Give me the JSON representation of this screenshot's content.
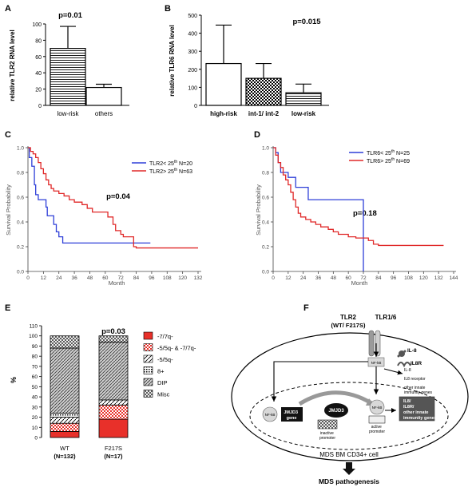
{
  "panels": {
    "A": {
      "letter": "A",
      "pvalue": "p=0.01",
      "ylabel": "relative TLR2 RNA level",
      "yticks": [
        "0",
        "20",
        "40",
        "60",
        "80",
        "100"
      ],
      "categories": [
        "low-risk",
        "others"
      ]
    },
    "B": {
      "letter": "B",
      "pvalue": "p=0.015",
      "ylabel": "relative TLR6 RNA level",
      "yticks": [
        "0",
        "100",
        "200",
        "300",
        "400",
        "500"
      ],
      "categories": [
        "high-risk",
        "int-1/ int-2",
        "low-risk"
      ]
    },
    "C": {
      "letter": "C",
      "pvalue": "p=0.04",
      "ylabel": "Survival Probability",
      "xlabel": "Month",
      "yticks": [
        "0.0",
        "0.2",
        "0.4",
        "0.6",
        "0.8",
        "1.0"
      ],
      "xticks": [
        "0",
        "12",
        "24",
        "36",
        "48",
        "60",
        "72",
        "84",
        "96",
        "108",
        "120",
        "132"
      ],
      "legend": [
        {
          "base": "TLR2< 25",
          "sup": "th",
          "n": " N=20"
        },
        {
          "base": "TLR2> 25",
          "sup": "th",
          "n": " N=63"
        }
      ]
    },
    "D": {
      "letter": "D",
      "pvalue": "p=0.18",
      "ylabel": "Survival Probability",
      "xlabel": "Month",
      "yticks": [
        "0.0",
        "0.2",
        "0.4",
        "0.6",
        "0.8",
        "1.0"
      ],
      "xticks": [
        "0",
        "12",
        "24",
        "36",
        "48",
        "60",
        "72",
        "84",
        "96",
        "108",
        "120",
        "132",
        "144"
      ],
      "legend": [
        {
          "base": "TLR6< 25",
          "sup": "th",
          "n": " N=25"
        },
        {
          "base": "TLR6> 25",
          "sup": "th",
          "n": " N=69"
        }
      ]
    },
    "E": {
      "letter": "E",
      "pvalue": "p=0.03",
      "ylabel": "%",
      "yticks": [
        "0",
        "10",
        "20",
        "30",
        "40",
        "50",
        "60",
        "70",
        "80",
        "90",
        "100",
        "110"
      ],
      "groups": [
        {
          "name": "WT",
          "n": "(N=132)"
        },
        {
          "name": "F217S",
          "n": "(N=17)"
        }
      ],
      "legend": [
        "-7/7q-",
        "-5/5q- & -7/7q-",
        "-5/5q-",
        "8+",
        "DIP",
        "Misc"
      ]
    },
    "F": {
      "letter": "F",
      "receptor_left": "TLR2",
      "receptor_left_sub": "(WT/ F217S)",
      "receptor_right": "TLR1/6",
      "il8": "IL-8",
      "il8r": "IL8R",
      "nfkb": "NF-kB",
      "targets": [
        "IL-8",
        "IL8 receptor",
        "other innate",
        "immunity genes"
      ],
      "box": [
        "IL8/",
        "IL8R/",
        "other innate",
        "immunity genes"
      ],
      "jmjd3": "JMJD3",
      "jmjd3_gene": [
        "JMJD3",
        "gene"
      ],
      "inactive": [
        "inactive",
        "promoter"
      ],
      "active": [
        "active",
        "promoter"
      ],
      "cell": "MDS BM CD34+ cell",
      "outcome": "MDS pathogenesis"
    }
  },
  "chart_data": [
    {
      "panel": "A",
      "type": "bar",
      "categories": [
        "low-risk",
        "others"
      ],
      "values": [
        70,
        22
      ],
      "errors": [
        27,
        4
      ],
      "ylabel": "relative TLR2 RNA level",
      "ylim": [
        0,
        100
      ],
      "annotation": "p=0.01"
    },
    {
      "panel": "B",
      "type": "bar",
      "categories": [
        "high-risk",
        "int-1/ int-2",
        "low-risk"
      ],
      "values": [
        232,
        150,
        70
      ],
      "errors": [
        213,
        82,
        48
      ],
      "ylabel": "relative TLR6 RNA level",
      "ylim": [
        0,
        500
      ],
      "annotation": "p=0.015"
    },
    {
      "panel": "C",
      "type": "line",
      "step": true,
      "xlabel": "Month",
      "ylabel": "Survival Probability",
      "xlim": [
        0,
        132
      ],
      "ylim": [
        0,
        1
      ],
      "annotation": "p=0.04",
      "series": [
        {
          "name": "TLR2< 25th N=20",
          "color": "#2e3fd8",
          "points": [
            [
              0,
              1.0
            ],
            [
              1,
              0.92
            ],
            [
              3,
              0.85
            ],
            [
              5,
              0.7
            ],
            [
              6,
              0.62
            ],
            [
              8,
              0.58
            ],
            [
              12,
              0.58
            ],
            [
              14,
              0.52
            ],
            [
              15,
              0.45
            ],
            [
              18,
              0.45
            ],
            [
              20,
              0.38
            ],
            [
              22,
              0.32
            ],
            [
              24,
              0.28
            ],
            [
              27,
              0.23
            ],
            [
              95,
              0.23
            ]
          ]
        },
        {
          "name": "TLR2> 25th N=63",
          "color": "#e02828",
          "points": [
            [
              0,
              1.0
            ],
            [
              2,
              0.97
            ],
            [
              4,
              0.95
            ],
            [
              6,
              0.92
            ],
            [
              8,
              0.88
            ],
            [
              10,
              0.83
            ],
            [
              12,
              0.79
            ],
            [
              14,
              0.74
            ],
            [
              16,
              0.7
            ],
            [
              18,
              0.67
            ],
            [
              20,
              0.65
            ],
            [
              24,
              0.63
            ],
            [
              28,
              0.61
            ],
            [
              32,
              0.58
            ],
            [
              36,
              0.56
            ],
            [
              42,
              0.54
            ],
            [
              46,
              0.51
            ],
            [
              50,
              0.48
            ],
            [
              60,
              0.48
            ],
            [
              62,
              0.44
            ],
            [
              66,
              0.38
            ],
            [
              68,
              0.33
            ],
            [
              72,
              0.3
            ],
            [
              74,
              0.28
            ],
            [
              80,
              0.28
            ],
            [
              82,
              0.2
            ],
            [
              84,
              0.19
            ],
            [
              132,
              0.19
            ]
          ]
        }
      ]
    },
    {
      "panel": "D",
      "type": "line",
      "step": true,
      "xlabel": "Month",
      "ylabel": "Survival Probability",
      "xlim": [
        0,
        144
      ],
      "ylim": [
        0,
        1
      ],
      "annotation": "p=0.18",
      "series": [
        {
          "name": "TLR6< 25th N=25",
          "color": "#2e3fd8",
          "points": [
            [
              0,
              1.0
            ],
            [
              2,
              0.96
            ],
            [
              4,
              0.88
            ],
            [
              6,
              0.8
            ],
            [
              10,
              0.8
            ],
            [
              12,
              0.76
            ],
            [
              16,
              0.76
            ],
            [
              18,
              0.68
            ],
            [
              24,
              0.68
            ],
            [
              28,
              0.58
            ],
            [
              72,
              0.58
            ],
            [
              72,
              0.0
            ]
          ]
        },
        {
          "name": "TLR6> 25th N=69",
          "color": "#e02828",
          "points": [
            [
              0,
              1.0
            ],
            [
              2,
              0.94
            ],
            [
              4,
              0.88
            ],
            [
              6,
              0.84
            ],
            [
              8,
              0.78
            ],
            [
              10,
              0.74
            ],
            [
              12,
              0.7
            ],
            [
              14,
              0.64
            ],
            [
              16,
              0.58
            ],
            [
              18,
              0.52
            ],
            [
              20,
              0.47
            ],
            [
              22,
              0.44
            ],
            [
              26,
              0.42
            ],
            [
              30,
              0.4
            ],
            [
              34,
              0.38
            ],
            [
              38,
              0.36
            ],
            [
              44,
              0.34
            ],
            [
              48,
              0.32
            ],
            [
              52,
              0.3
            ],
            [
              60,
              0.28
            ],
            [
              66,
              0.27
            ],
            [
              72,
              0.27
            ],
            [
              76,
              0.25
            ],
            [
              80,
              0.22
            ],
            [
              84,
              0.21
            ],
            [
              136,
              0.21
            ]
          ]
        }
      ]
    },
    {
      "panel": "E",
      "type": "bar",
      "stacked": true,
      "categories": [
        "WT",
        "F217S"
      ],
      "ylabel": "%",
      "ylim": [
        0,
        110
      ],
      "annotation": "p=0.03",
      "series": [
        {
          "name": "-7/7q-",
          "values": [
            6,
            18
          ]
        },
        {
          "name": "-5/5q- & -7/7q-",
          "values": [
            8,
            14
          ]
        },
        {
          "name": "-5/5q-",
          "values": [
            6,
            5
          ]
        },
        {
          "name": "8+",
          "values": [
            4,
            0
          ]
        },
        {
          "name": "DIP",
          "values": [
            64,
            57
          ]
        },
        {
          "name": "Misc",
          "values": [
            12,
            6
          ]
        }
      ]
    }
  ]
}
